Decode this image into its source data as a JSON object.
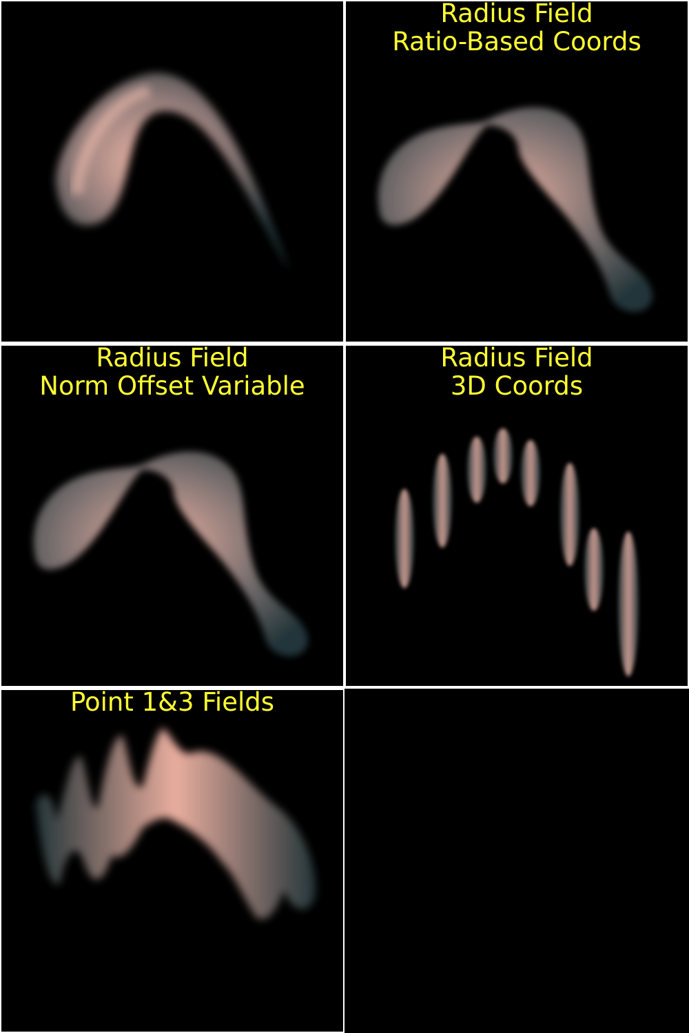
{
  "panels": [
    {
      "lines": []
    },
    {
      "lines": [
        "Radius Field",
        "Ratio-Based Coords"
      ]
    },
    {
      "lines": [
        "Radius Field",
        "Norm Offset Variable"
      ]
    },
    {
      "lines": [
        "Radius Field",
        "3D Coords"
      ]
    },
    {
      "lines": [
        "Point 1&3 Fields"
      ]
    },
    {
      "lines": []
    }
  ],
  "colors": {
    "background": "#000000",
    "caption": "#ffff33",
    "highlight": "#f2b8a8",
    "shadow": "#2e4247",
    "separator": "#ffffff"
  }
}
